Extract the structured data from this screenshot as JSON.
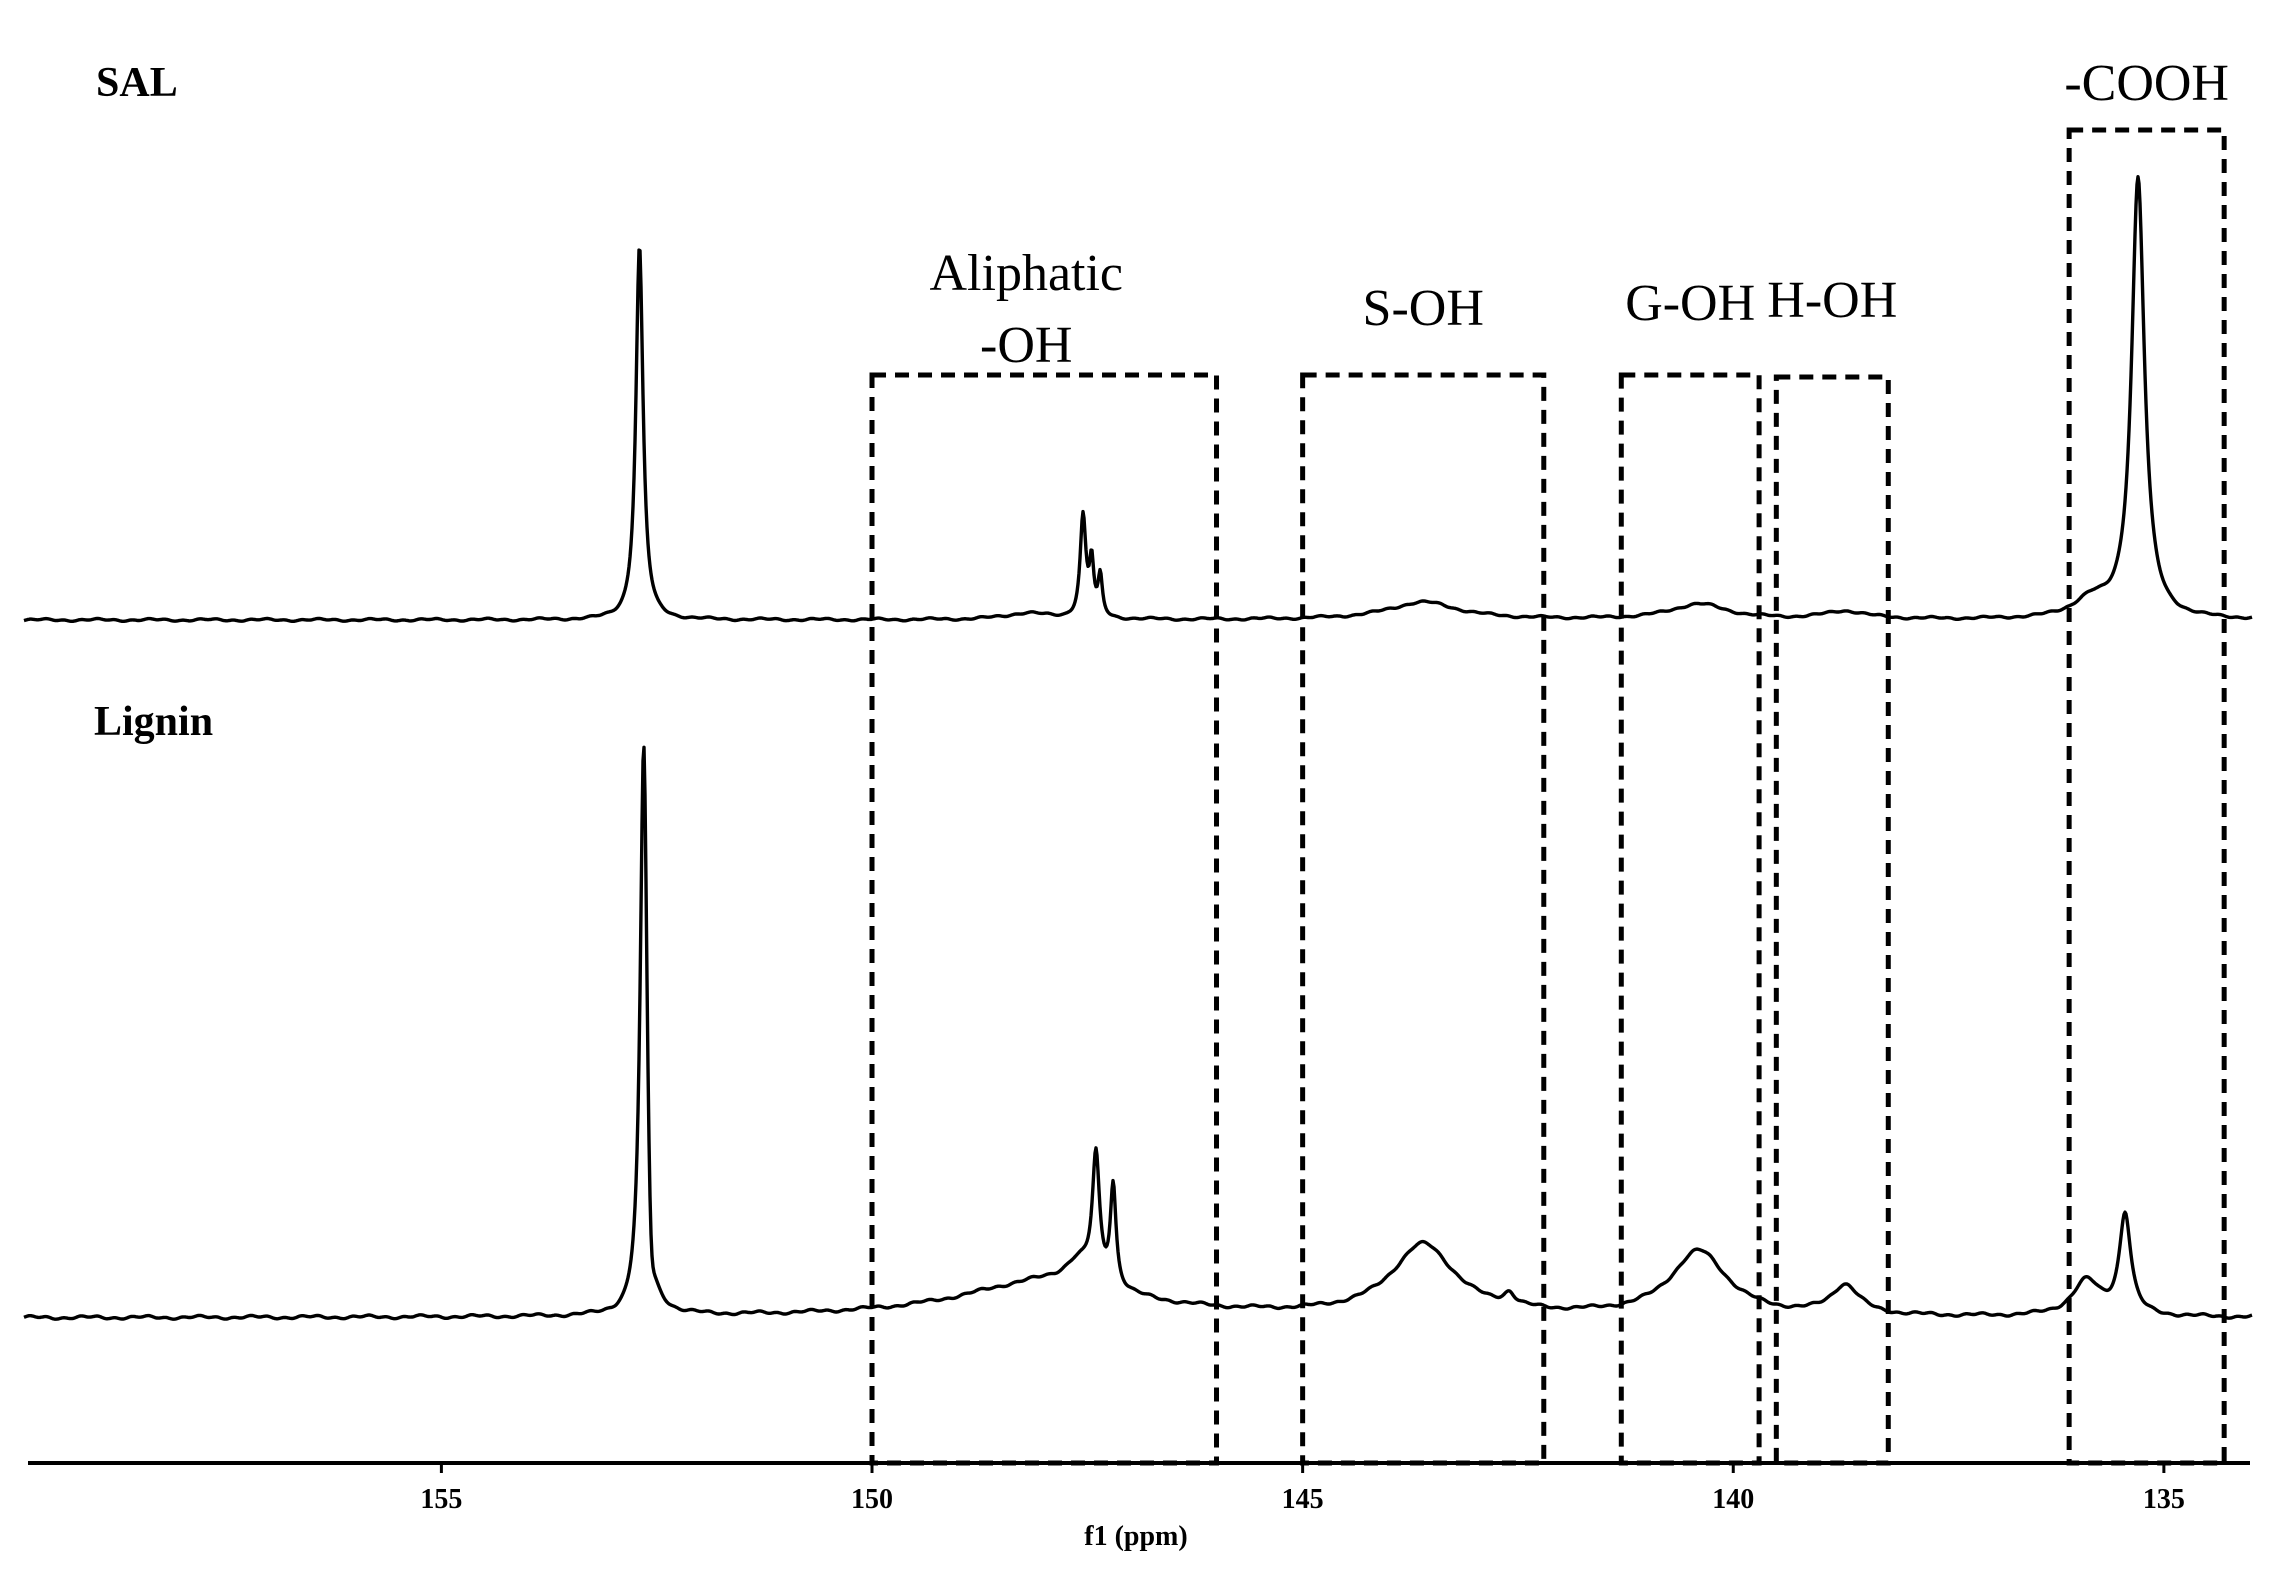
{
  "chart_data": {
    "type": "line",
    "title": "",
    "xlabel": "f1 (ppm)",
    "ylabel": "",
    "x_reversed": true,
    "xlim": [
      159.8,
      134.0
    ],
    "x_ticks": [
      "155",
      "150",
      "145",
      "140",
      "135"
    ],
    "x_tick_values": [
      155,
      150,
      145,
      140,
      135
    ],
    "grid": false,
    "series": [
      {
        "name": "SAL",
        "peaks": [
          {
            "x": 152.7,
            "height": 0.85,
            "width": 0.05,
            "dip": 0
          },
          {
            "x": 147.55,
            "height": 0.23,
            "width": 0.04,
            "dip": 0
          },
          {
            "x": 147.45,
            "height": 0.12,
            "width": 0.03,
            "dip": 0
          },
          {
            "x": 147.35,
            "height": 0.09,
            "width": 0.03,
            "dip": 0
          },
          {
            "x": 148.2,
            "height": 0.015,
            "width": 0.3,
            "dip": 0
          },
          {
            "x": 143.6,
            "height": 0.04,
            "width": 0.5,
            "dip": 0
          },
          {
            "x": 140.4,
            "height": 0.035,
            "width": 0.4,
            "dip": 0
          },
          {
            "x": 138.7,
            "height": 0.018,
            "width": 0.3,
            "dip": 0
          },
          {
            "x": 135.85,
            "height": 0.04,
            "width": 0.25,
            "dip": 0
          },
          {
            "x": 135.3,
            "height": 1.0,
            "width": 0.09,
            "dip": 0
          }
        ]
      },
      {
        "name": "Lignin",
        "peaks": [
          {
            "x": 152.65,
            "height": 1.0,
            "width": 0.05,
            "dip": -0.07
          },
          {
            "x": 148.0,
            "height": 0.06,
            "width": 1.2,
            "dip": 0
          },
          {
            "x": 147.6,
            "height": 0.04,
            "width": 0.2,
            "dip": 0
          },
          {
            "x": 147.4,
            "height": 0.21,
            "width": 0.05,
            "dip": 0
          },
          {
            "x": 147.2,
            "height": 0.17,
            "width": 0.04,
            "dip": 0
          },
          {
            "x": 143.6,
            "height": 0.12,
            "width": 0.45,
            "dip": 0
          },
          {
            "x": 142.6,
            "height": 0.02,
            "width": 0.08,
            "dip": 0
          },
          {
            "x": 140.4,
            "height": 0.11,
            "width": 0.4,
            "dip": 0
          },
          {
            "x": 138.7,
            "height": 0.05,
            "width": 0.2,
            "dip": 0
          },
          {
            "x": 135.9,
            "height": 0.06,
            "width": 0.2,
            "dip": 0
          },
          {
            "x": 135.45,
            "height": 0.17,
            "width": 0.08,
            "dip": 0
          }
        ]
      }
    ],
    "regions": [
      {
        "label_lines": [
          "Aliphatic",
          "-OH"
        ],
        "x_start": 150.0,
        "x_end": 146.0
      },
      {
        "label_lines": [
          "S-OH"
        ],
        "x_start": 145.0,
        "x_end": 142.2
      },
      {
        "label_lines": [
          "G-OH"
        ],
        "x_start": 141.3,
        "x_end": 139.7
      },
      {
        "label_lines": [
          "H-OH"
        ],
        "x_start": 139.5,
        "x_end": 138.2
      },
      {
        "label_lines": [
          "-COOH"
        ],
        "x_start": 136.1,
        "x_end": 134.3
      }
    ]
  }
}
